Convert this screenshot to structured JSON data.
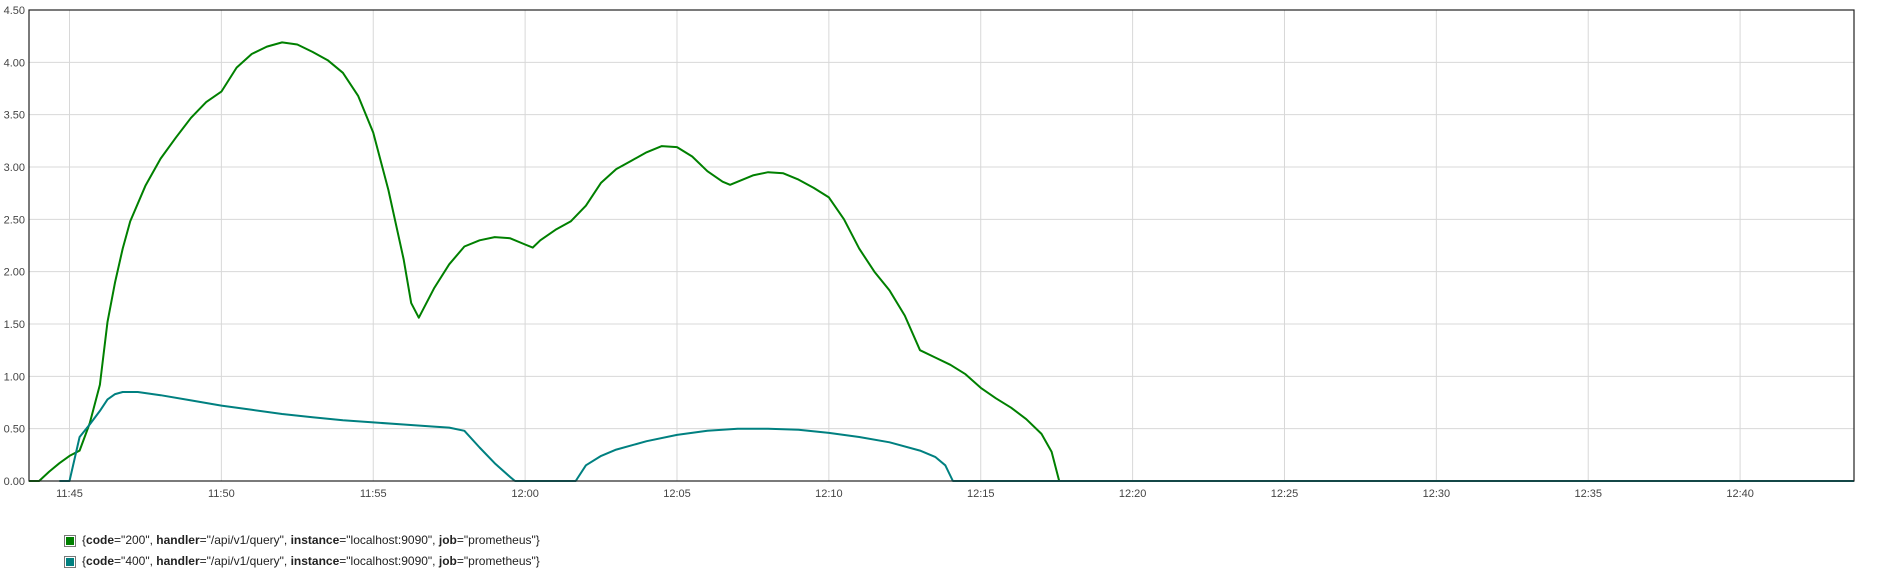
{
  "chart_data": {
    "type": "line",
    "ylim": [
      0,
      4.5
    ],
    "y_ticks": [
      "0.00",
      "0.50",
      "1.00",
      "1.50",
      "2.00",
      "2.50",
      "3.00",
      "3.50",
      "4.00",
      "4.50"
    ],
    "x_ticks": [
      "11:45",
      "11:50",
      "11:55",
      "12:00",
      "12:05",
      "12:10",
      "12:15",
      "12:20",
      "12:25",
      "12:30",
      "12:35",
      "12:40"
    ],
    "xlim": [
      "11:43:40",
      "12:43:45"
    ],
    "grid": true,
    "legend_position": "bottom-left",
    "series": [
      {
        "color": "#008000",
        "legend": {
          "code": "200",
          "handler": "/api/v1/query",
          "instance": "localhost:9090",
          "job": "prometheus"
        },
        "points": [
          [
            "11:43:40",
            0.0
          ],
          [
            "11:44:00",
            0.0
          ],
          [
            "11:44:20",
            0.09
          ],
          [
            "11:44:40",
            0.17
          ],
          [
            "11:45:00",
            0.24
          ],
          [
            "11:45:20",
            0.29
          ],
          [
            "11:45:40",
            0.55
          ],
          [
            "11:46:00",
            0.92
          ],
          [
            "11:46:15",
            1.52
          ],
          [
            "11:46:30",
            1.9
          ],
          [
            "11:46:45",
            2.22
          ],
          [
            "11:47:00",
            2.48
          ],
          [
            "11:47:30",
            2.82
          ],
          [
            "11:48:00",
            3.08
          ],
          [
            "11:48:30",
            3.28
          ],
          [
            "11:49:00",
            3.47
          ],
          [
            "11:49:30",
            3.62
          ],
          [
            "11:50:00",
            3.72
          ],
          [
            "11:50:30",
            3.95
          ],
          [
            "11:51:00",
            4.08
          ],
          [
            "11:51:30",
            4.15
          ],
          [
            "11:52:00",
            4.19
          ],
          [
            "11:52:30",
            4.17
          ],
          [
            "11:53:00",
            4.1
          ],
          [
            "11:53:30",
            4.02
          ],
          [
            "11:54:00",
            3.9
          ],
          [
            "11:54:30",
            3.68
          ],
          [
            "11:55:00",
            3.33
          ],
          [
            "11:55:30",
            2.78
          ],
          [
            "11:56:00",
            2.12
          ],
          [
            "11:56:15",
            1.7
          ],
          [
            "11:56:30",
            1.56
          ],
          [
            "11:57:00",
            1.84
          ],
          [
            "11:57:30",
            2.07
          ],
          [
            "11:58:00",
            2.24
          ],
          [
            "11:58:30",
            2.3
          ],
          [
            "11:59:00",
            2.33
          ],
          [
            "11:59:30",
            2.32
          ],
          [
            "12:00:00",
            2.26
          ],
          [
            "12:00:15",
            2.23
          ],
          [
            "12:00:30",
            2.3
          ],
          [
            "12:01:00",
            2.4
          ],
          [
            "12:01:30",
            2.48
          ],
          [
            "12:02:00",
            2.63
          ],
          [
            "12:02:30",
            2.85
          ],
          [
            "12:03:00",
            2.98
          ],
          [
            "12:03:30",
            3.06
          ],
          [
            "12:04:00",
            3.14
          ],
          [
            "12:04:30",
            3.2
          ],
          [
            "12:05:00",
            3.19
          ],
          [
            "12:05:30",
            3.1
          ],
          [
            "12:06:00",
            2.96
          ],
          [
            "12:06:30",
            2.86
          ],
          [
            "12:06:45",
            2.83
          ],
          [
            "12:07:00",
            2.86
          ],
          [
            "12:07:30",
            2.92
          ],
          [
            "12:08:00",
            2.95
          ],
          [
            "12:08:30",
            2.94
          ],
          [
            "12:09:00",
            2.88
          ],
          [
            "12:09:30",
            2.8
          ],
          [
            "12:10:00",
            2.71
          ],
          [
            "12:10:30",
            2.5
          ],
          [
            "12:11:00",
            2.22
          ],
          [
            "12:11:30",
            2.0
          ],
          [
            "12:12:00",
            1.82
          ],
          [
            "12:12:30",
            1.58
          ],
          [
            "12:13:00",
            1.25
          ],
          [
            "12:13:30",
            1.18
          ],
          [
            "12:14:00",
            1.11
          ],
          [
            "12:14:30",
            1.02
          ],
          [
            "12:15:00",
            0.89
          ],
          [
            "12:15:30",
            0.79
          ],
          [
            "12:16:00",
            0.7
          ],
          [
            "12:16:30",
            0.59
          ],
          [
            "12:17:00",
            0.45
          ],
          [
            "12:17:20",
            0.28
          ],
          [
            "12:17:35",
            0.0
          ],
          [
            "12:43:45",
            0.0
          ]
        ]
      },
      {
        "color": "#008080",
        "legend": {
          "code": "400",
          "handler": "/api/v1/query",
          "instance": "localhost:9090",
          "job": "prometheus"
        },
        "points": [
          [
            "11:44:40",
            0.0
          ],
          [
            "11:45:00",
            0.0
          ],
          [
            "11:45:20",
            0.42
          ],
          [
            "11:45:40",
            0.54
          ],
          [
            "11:46:00",
            0.67
          ],
          [
            "11:46:15",
            0.78
          ],
          [
            "11:46:30",
            0.83
          ],
          [
            "11:46:45",
            0.85
          ],
          [
            "11:47:15",
            0.85
          ],
          [
            "11:48:00",
            0.82
          ],
          [
            "11:49:00",
            0.77
          ],
          [
            "11:50:00",
            0.72
          ],
          [
            "11:51:00",
            0.68
          ],
          [
            "11:52:00",
            0.64
          ],
          [
            "11:53:00",
            0.61
          ],
          [
            "11:54:00",
            0.58
          ],
          [
            "11:55:00",
            0.56
          ],
          [
            "11:56:00",
            0.54
          ],
          [
            "11:57:00",
            0.52
          ],
          [
            "11:57:30",
            0.51
          ],
          [
            "11:58:00",
            0.48
          ],
          [
            "11:58:30",
            0.32
          ],
          [
            "11:59:00",
            0.17
          ],
          [
            "11:59:30",
            0.04
          ],
          [
            "11:59:40",
            0.0
          ],
          [
            "12:01:40",
            0.0
          ],
          [
            "12:02:00",
            0.15
          ],
          [
            "12:02:30",
            0.24
          ],
          [
            "12:03:00",
            0.3
          ],
          [
            "12:04:00",
            0.38
          ],
          [
            "12:05:00",
            0.44
          ],
          [
            "12:06:00",
            0.48
          ],
          [
            "12:07:00",
            0.5
          ],
          [
            "12:08:00",
            0.5
          ],
          [
            "12:09:00",
            0.49
          ],
          [
            "12:10:00",
            0.46
          ],
          [
            "12:11:00",
            0.42
          ],
          [
            "12:12:00",
            0.37
          ],
          [
            "12:13:00",
            0.29
          ],
          [
            "12:13:30",
            0.23
          ],
          [
            "12:13:50",
            0.15
          ],
          [
            "12:14:05",
            0.0
          ],
          [
            "12:43:45",
            0.0
          ]
        ]
      }
    ]
  }
}
